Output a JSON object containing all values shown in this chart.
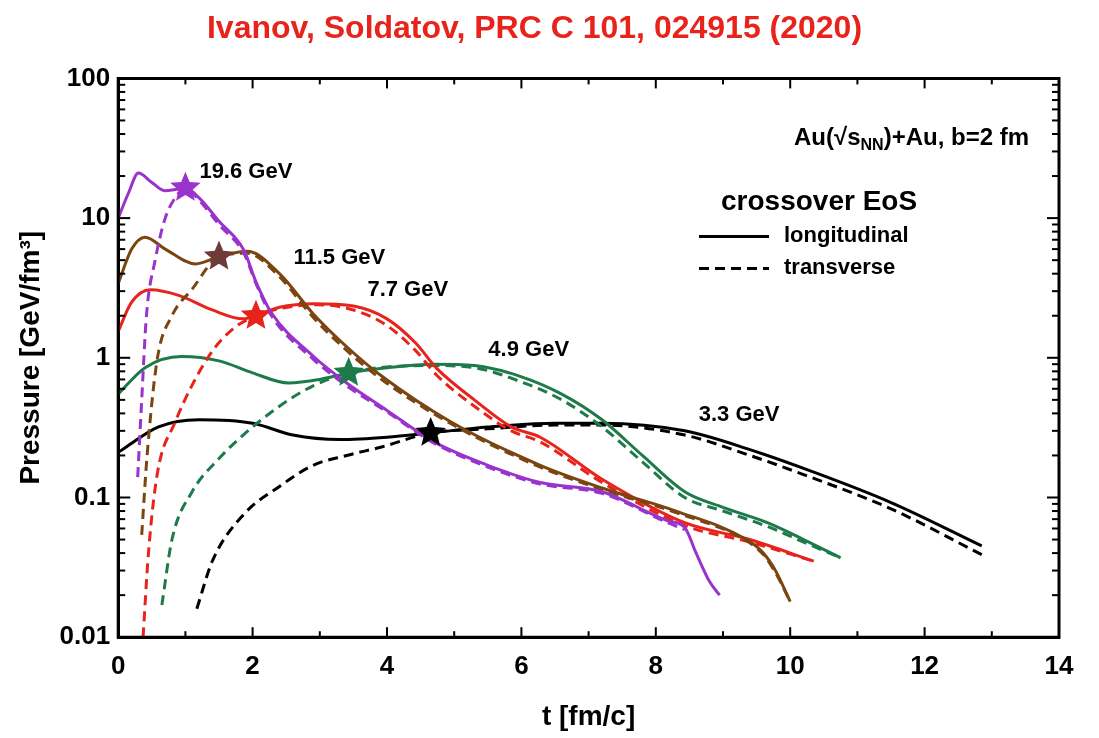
{
  "chart_data": {
    "type": "line",
    "title": "Ivanov, Soldatov, PRC C 101, 024915 (2020)",
    "xlabel": "t [fm/c]",
    "ylabel": "Pressure [GeV/fm³]",
    "legend_title": "crossover EoS",
    "legend": "top right",
    "log": "y",
    "grid": false,
    "marker": "none",
    "xlim": [
      0,
      14
    ],
    "xticks": [
      0,
      {
        "value": 1,
        "label": null
      },
      2,
      {
        "value": 3,
        "label": null
      },
      4,
      {
        "value": 5,
        "label": null
      },
      6,
      {
        "value": 7,
        "label": null
      },
      8,
      {
        "value": 9,
        "label": null
      },
      10,
      {
        "value": 11,
        "label": null
      },
      12,
      {
        "value": 13,
        "label": null
      },
      14
    ],
    "ylim": [
      0.01,
      100
    ],
    "yticks": [
      0.01,
      {
        "value": 0.02,
        "label": null
      },
      {
        "value": 0.03,
        "label": null
      },
      {
        "value": 0.04,
        "label": null
      },
      {
        "value": 0.05,
        "label": null
      },
      {
        "value": 0.06,
        "label": null
      },
      {
        "value": 0.07,
        "label": null
      },
      {
        "value": 0.08,
        "label": null
      },
      {
        "value": 0.09,
        "label": null
      },
      0.1,
      {
        "value": 0.2,
        "label": null
      },
      {
        "value": 0.3,
        "label": null
      },
      {
        "value": 0.4,
        "label": null
      },
      {
        "value": 0.5,
        "label": null
      },
      {
        "value": 0.6,
        "label": null
      },
      {
        "value": 0.7,
        "label": null
      },
      {
        "value": 0.8,
        "label": null
      },
      {
        "value": 0.9,
        "label": null
      },
      1,
      {
        "value": 2,
        "label": null
      },
      {
        "value": 3,
        "label": null
      },
      {
        "value": 4,
        "label": null
      },
      {
        "value": 5,
        "label": null
      },
      {
        "value": 6,
        "label": null
      },
      {
        "value": 7,
        "label": null
      },
      {
        "value": 8,
        "label": null
      },
      {
        "value": 9,
        "label": null
      },
      10,
      {
        "value": 20,
        "label": null
      },
      {
        "value": 30,
        "label": null
      },
      {
        "value": 40,
        "label": null
      },
      {
        "value": 50,
        "label": null
      },
      {
        "value": 60,
        "label": null
      },
      {
        "value": 70,
        "label": null
      },
      {
        "value": 80,
        "label": null
      },
      {
        "value": 90,
        "label": null
      },
      100
    ],
    "annotations": [
      "Au(√s$_{NN}$)+Au, b=2 fm",
      {
        "text": "19.6 GeV",
        "x": 1.0,
        "y": 16.5
      },
      {
        "text": "11.5 GeV",
        "x": 2.4,
        "y": 4.0
      },
      {
        "text": "7.7 GeV",
        "x": 3.5,
        "y": 2.35
      },
      {
        "text": "4.9 GeV",
        "x": 5.3,
        "y": 0.88
      },
      {
        "text": "3.3 GeV",
        "x": 8.43,
        "y": 0.3
      }
    ],
    "series": [
      {
        "line_style": "solid",
        "color": "#9933cc",
        "x": [
          0,
          0.15,
          0.3,
          0.5,
          0.69,
          0.85,
          1.0,
          1.2,
          1.5,
          1.87,
          2.05,
          2.28,
          2.9,
          3.4,
          4.0,
          4.7,
          5.5,
          6.28,
          7.2,
          8.18,
          8.43,
          8.6,
          8.8,
          8.95
        ],
        "values": [
          10,
          15,
          21,
          18,
          15.7,
          16,
          16.5,
          14,
          9.5,
          5.9,
          3.5,
          2.1,
          1.03,
          0.66,
          0.42,
          0.25,
          0.17,
          0.128,
          0.11,
          0.068,
          0.061,
          0.04,
          0.025,
          0.02
        ]
      },
      {
        "line_style": "dashed",
        "color": "#9933cc",
        "x": [
          0.29,
          0.35,
          0.42,
          0.55,
          0.7,
          0.85,
          1.0,
          1.2,
          1.5,
          1.87,
          2.05,
          2.28,
          2.9,
          3.4,
          4.0,
          4.7,
          5.5,
          6.28,
          7.2,
          8.18,
          8.43
        ],
        "values": [
          0.14,
          0.5,
          2,
          5,
          10,
          14,
          16.5,
          13.5,
          9,
          5.6,
          3.4,
          2.0,
          0.98,
          0.63,
          0.41,
          0.245,
          0.165,
          0.125,
          0.107,
          0.066,
          0.059
        ]
      },
      {
        "line_style": "solid",
        "color": "#7b4512",
        "x": [
          0,
          0.2,
          0.4,
          0.7,
          1.15,
          1.5,
          1.92,
          2.4,
          2.9,
          3.4,
          3.92,
          4.94,
          6.28,
          7.2,
          8.3,
          9.35,
          9.6,
          9.78,
          10.0
        ],
        "values": [
          3.4,
          6,
          7.3,
          6,
          4.7,
          5.3,
          5.8,
          4.0,
          2.07,
          1.2,
          0.74,
          0.35,
          0.17,
          0.117,
          0.08,
          0.05,
          0.04,
          0.03,
          0.018
        ]
      },
      {
        "line_style": "dashed",
        "color": "#7b4512",
        "x": [
          0.35,
          0.43,
          0.58,
          0.8,
          1.1,
          1.5,
          1.92,
          2.4,
          2.9,
          3.4,
          3.92,
          4.94,
          6.28,
          7.2,
          8.3,
          9.35,
          9.6,
          9.78,
          10.0
        ],
        "values": [
          0.054,
          0.2,
          0.97,
          2,
          3.1,
          5.3,
          5.6,
          3.8,
          1.95,
          1.13,
          0.7,
          0.34,
          0.165,
          0.114,
          0.078,
          0.049,
          0.039,
          0.029,
          0.018
        ]
      },
      {
        "line_style": "solid",
        "color": "#e8231c",
        "x": [
          0,
          0.2,
          0.48,
          0.9,
          1.4,
          1.86,
          2.05,
          2.4,
          2.9,
          3.5,
          4.0,
          4.43,
          4.74,
          5.3,
          5.85,
          6.28,
          7.2,
          8.43,
          9.4,
          10.35
        ],
        "values": [
          1.55,
          2.5,
          3.07,
          2.8,
          2.2,
          1.9,
          2.0,
          2.3,
          2.44,
          2.35,
          1.9,
          1.27,
          0.84,
          0.5,
          0.32,
          0.27,
          0.135,
          0.066,
          0.05,
          0.035
        ]
      },
      {
        "line_style": "dashed",
        "color": "#e8231c",
        "x": [
          0.37,
          0.45,
          0.58,
          0.84,
          1.35,
          1.7,
          2.05,
          2.4,
          2.95,
          3.5,
          4.0,
          4.43,
          4.74,
          5.3,
          5.85,
          6.28,
          7.2,
          8.43,
          9.4,
          10.35
        ],
        "values": [
          0.01,
          0.04,
          0.146,
          0.34,
          1.03,
          1.6,
          2.0,
          2.25,
          2.4,
          2.2,
          1.7,
          1.12,
          0.75,
          0.45,
          0.3,
          0.25,
          0.128,
          0.063,
          0.048,
          0.035
        ]
      },
      {
        "line_style": "solid",
        "color": "#1e7a4a",
        "x": [
          0,
          0.4,
          0.94,
          1.5,
          2.0,
          2.54,
          3.0,
          3.43,
          4.0,
          4.69,
          5.3,
          5.97,
          6.6,
          7.2,
          7.8,
          8.43,
          9.0,
          9.66,
          10.2,
          10.75
        ],
        "values": [
          0.55,
          0.85,
          1.02,
          0.95,
          0.78,
          0.66,
          0.7,
          0.78,
          0.85,
          0.9,
          0.88,
          0.74,
          0.55,
          0.36,
          0.2,
          0.11,
          0.085,
          0.066,
          0.05,
          0.037
        ]
      },
      {
        "line_style": "dashed",
        "color": "#1e7a4a",
        "x": [
          0.65,
          0.8,
          1.1,
          1.5,
          1.86,
          2.4,
          2.9,
          3.43,
          4.0,
          4.69,
          5.3,
          5.97,
          6.6,
          7.2,
          7.8,
          8.43,
          9.0,
          9.66,
          10.2,
          10.75
        ],
        "values": [
          0.017,
          0.05,
          0.11,
          0.19,
          0.28,
          0.45,
          0.63,
          0.78,
          0.86,
          0.88,
          0.85,
          0.68,
          0.5,
          0.32,
          0.18,
          0.1,
          0.08,
          0.062,
          0.048,
          0.037
        ]
      },
      {
        "line_style": "solid",
        "name": "longitudinal",
        "color": "#000000",
        "x": [
          0,
          0.12,
          0.6,
          1.2,
          2.0,
          2.6,
          3.3,
          4.0,
          4.65,
          5.5,
          6.5,
          7.2,
          8.43,
          9.4,
          10.3,
          11.5,
          12.85
        ],
        "values": [
          0.21,
          0.23,
          0.32,
          0.36,
          0.34,
          0.28,
          0.26,
          0.27,
          0.29,
          0.32,
          0.34,
          0.34,
          0.3,
          0.22,
          0.155,
          0.092,
          0.045
        ]
      },
      {
        "line_style": "dashed",
        "name": "transverse",
        "color": "#000000",
        "x": [
          1.17,
          1.4,
          1.86,
          2.4,
          2.9,
          3.4,
          3.92,
          4.65,
          5.5,
          6.5,
          7.2,
          8.43,
          9.4,
          10.3,
          11.5,
          12.85
        ],
        "values": [
          0.016,
          0.035,
          0.075,
          0.12,
          0.17,
          0.2,
          0.23,
          0.29,
          0.31,
          0.33,
          0.33,
          0.28,
          0.2,
          0.14,
          0.083,
          0.039
        ]
      },
      {
        "type": "scatter",
        "marker": "star",
        "x": [
          1.0,
          1.5,
          2.05,
          3.43,
          4.65
        ],
        "values": [
          16.5,
          5.3,
          2.0,
          0.78,
          0.29
        ],
        "colors": [
          "#9933cc",
          "#6e3b3b",
          "#e8231c",
          "#1e7a4a",
          "#000000"
        ]
      }
    ]
  }
}
